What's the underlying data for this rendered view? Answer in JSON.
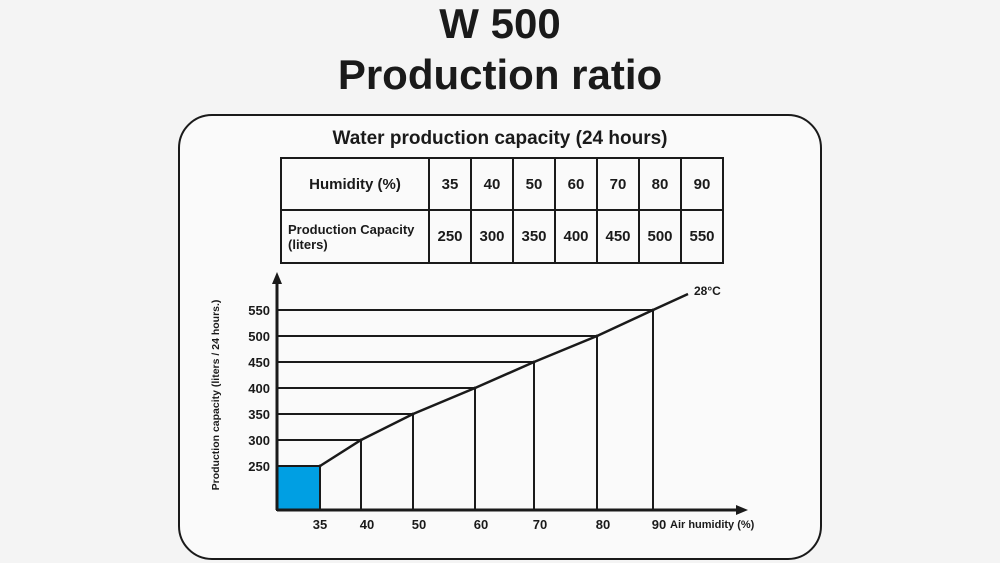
{
  "page": {
    "title_line1": "W 500",
    "title_line2": "Production ratio"
  },
  "table": {
    "title": "Water production capacity (24 hours)",
    "row1_label": "Humidity (%)",
    "row2_label_line1": "Production Capacity",
    "row2_label_line2": "(liters)",
    "humidity": [
      "35",
      "40",
      "50",
      "60",
      "70",
      "80",
      "90"
    ],
    "capacity": [
      "250",
      "300",
      "350",
      "400",
      "450",
      "500",
      "550"
    ]
  },
  "chart_data": {
    "type": "line",
    "x": [
      35,
      40,
      50,
      60,
      70,
      80,
      90
    ],
    "y": [
      250,
      300,
      350,
      400,
      450,
      500,
      550
    ],
    "x_tick_labels": [
      "35",
      "40",
      "50",
      "60",
      "70",
      "80",
      "90"
    ],
    "y_tick_labels": [
      "250",
      "300",
      "350",
      "400",
      "450",
      "500",
      "550"
    ],
    "xlabel": "Air humidity (%)",
    "ylabel": "Production capacity (liters / 24 hours.)",
    "annotation": "28°C",
    "grid": false,
    "colors": {
      "line": "#1a1a1a",
      "highlight": "#009fe3"
    }
  }
}
